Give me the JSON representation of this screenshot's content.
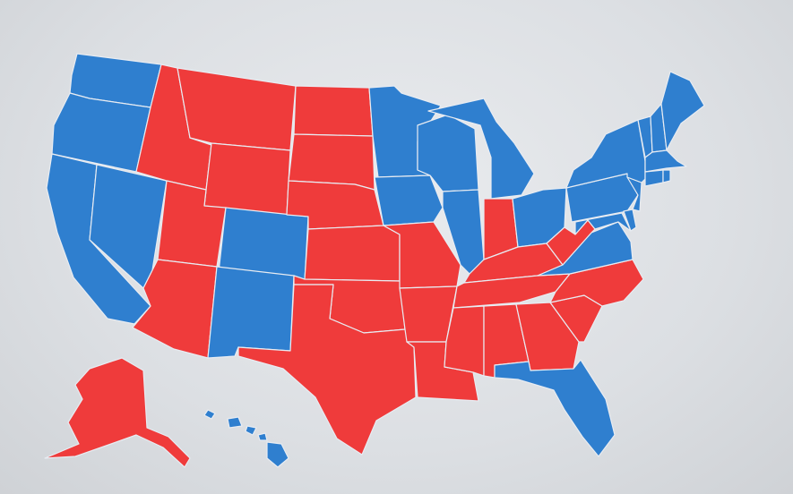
{
  "map": {
    "colors": {
      "red": "#ef3b3b",
      "blue": "#2f7fcf"
    },
    "states": [
      {
        "id": "WA",
        "party": "blue"
      },
      {
        "id": "OR",
        "party": "blue"
      },
      {
        "id": "CA",
        "party": "blue"
      },
      {
        "id": "NV",
        "party": "blue"
      },
      {
        "id": "ID",
        "party": "red"
      },
      {
        "id": "MT",
        "party": "red"
      },
      {
        "id": "WY",
        "party": "red"
      },
      {
        "id": "UT",
        "party": "red"
      },
      {
        "id": "AZ",
        "party": "red"
      },
      {
        "id": "CO",
        "party": "blue"
      },
      {
        "id": "NM",
        "party": "blue"
      },
      {
        "id": "ND",
        "party": "red"
      },
      {
        "id": "SD",
        "party": "red"
      },
      {
        "id": "NE",
        "party": "red"
      },
      {
        "id": "KS",
        "party": "red"
      },
      {
        "id": "OK",
        "party": "red"
      },
      {
        "id": "TX",
        "party": "red"
      },
      {
        "id": "MN",
        "party": "blue"
      },
      {
        "id": "IA",
        "party": "blue"
      },
      {
        "id": "MO",
        "party": "red"
      },
      {
        "id": "AR",
        "party": "red"
      },
      {
        "id": "LA",
        "party": "red"
      },
      {
        "id": "WI",
        "party": "blue"
      },
      {
        "id": "IL",
        "party": "blue"
      },
      {
        "id": "MI",
        "party": "blue"
      },
      {
        "id": "IN",
        "party": "red"
      },
      {
        "id": "OH",
        "party": "blue"
      },
      {
        "id": "KY",
        "party": "red"
      },
      {
        "id": "TN",
        "party": "red"
      },
      {
        "id": "MS",
        "party": "red"
      },
      {
        "id": "AL",
        "party": "red"
      },
      {
        "id": "GA",
        "party": "red"
      },
      {
        "id": "FL",
        "party": "blue"
      },
      {
        "id": "SC",
        "party": "red"
      },
      {
        "id": "NC",
        "party": "red"
      },
      {
        "id": "VA",
        "party": "blue"
      },
      {
        "id": "WV",
        "party": "red"
      },
      {
        "id": "PA",
        "party": "blue"
      },
      {
        "id": "NY",
        "party": "blue"
      },
      {
        "id": "VT",
        "party": "blue"
      },
      {
        "id": "NH",
        "party": "blue"
      },
      {
        "id": "ME",
        "party": "blue"
      },
      {
        "id": "MA",
        "party": "blue"
      },
      {
        "id": "CT",
        "party": "blue"
      },
      {
        "id": "RI",
        "party": "blue"
      },
      {
        "id": "NJ",
        "party": "blue"
      },
      {
        "id": "DE",
        "party": "blue"
      },
      {
        "id": "MD",
        "party": "blue"
      },
      {
        "id": "AK",
        "party": "red"
      },
      {
        "id": "HI",
        "party": "blue"
      }
    ]
  }
}
